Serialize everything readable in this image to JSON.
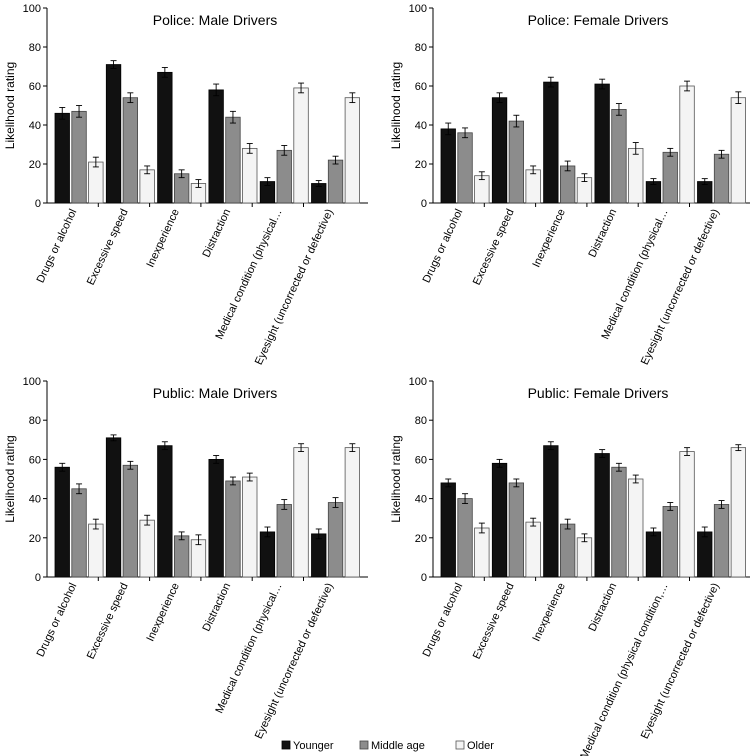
{
  "series_styles": [
    {
      "key": "younger",
      "fill": "#111111",
      "stroke": "#000000"
    },
    {
      "key": "middle",
      "fill": "#8c8c8c",
      "stroke": "#444444"
    },
    {
      "key": "older",
      "fill": "#f4f4f4",
      "stroke": "#555555"
    }
  ],
  "legend": [
    {
      "label": "Younger"
    },
    {
      "label": "Middle age"
    },
    {
      "label": "Older"
    }
  ],
  "chart_data": [
    {
      "type": "bar",
      "title": "Police: Male Drivers",
      "ylabel": "Likelihood rating",
      "ylim": [
        0,
        100
      ],
      "yticks": [
        0,
        20,
        40,
        60,
        80,
        100
      ],
      "categories": [
        "Drugs or alcohol",
        "Excessive speed",
        "Inexperience",
        "Distraction",
        "Medical condition (physical…",
        "Eyesight (uncorrected or defective)"
      ],
      "series": [
        {
          "name": "Younger",
          "values": [
            46,
            71,
            67,
            58,
            11,
            10
          ],
          "errors": [
            3,
            2,
            2.5,
            3,
            2,
            1.5
          ]
        },
        {
          "name": "Middle age",
          "values": [
            47,
            54,
            15,
            44,
            27,
            22
          ],
          "errors": [
            3,
            2.5,
            2,
            3,
            2.5,
            2
          ]
        },
        {
          "name": "Older",
          "values": [
            21,
            17,
            10,
            28,
            59,
            54
          ],
          "errors": [
            2.5,
            2,
            2,
            2.5,
            2.5,
            2.5
          ]
        }
      ]
    },
    {
      "type": "bar",
      "title": "Police: Female Drivers",
      "ylabel": "Likelihood rating",
      "ylim": [
        0,
        100
      ],
      "yticks": [
        0,
        20,
        40,
        60,
        80,
        100
      ],
      "categories": [
        "Drugs or alcohol",
        "Excessive speed",
        "Inexperience",
        "Distraction",
        "Medical condition (physical…",
        "Eyesight (uncorrected or defective)"
      ],
      "series": [
        {
          "name": "Younger",
          "values": [
            38,
            54,
            62,
            61,
            11,
            11
          ],
          "errors": [
            3,
            2.5,
            2.5,
            2.5,
            1.5,
            1.5
          ]
        },
        {
          "name": "Middle age",
          "values": [
            36,
            42,
            19,
            48,
            26,
            25
          ],
          "errors": [
            2.5,
            3,
            2.5,
            3,
            2,
            2
          ]
        },
        {
          "name": "Older",
          "values": [
            14,
            17,
            13,
            28,
            60,
            54
          ],
          "errors": [
            2,
            2,
            2,
            3,
            2.5,
            3
          ]
        }
      ]
    },
    {
      "type": "bar",
      "title": "Public: Male Drivers",
      "ylabel": "Likelihood rating",
      "ylim": [
        0,
        100
      ],
      "yticks": [
        0,
        20,
        40,
        60,
        80,
        100
      ],
      "categories": [
        "Drugs or alcohol",
        "Excessive speed",
        "Inexperience",
        "Distraction",
        "Medical condition (physical…",
        "Eyesight (uncorrected or defective)"
      ],
      "series": [
        {
          "name": "Younger",
          "values": [
            56,
            71,
            67,
            60,
            23,
            22
          ],
          "errors": [
            2,
            1.5,
            2,
            2,
            2.5,
            2.5
          ]
        },
        {
          "name": "Middle age",
          "values": [
            45,
            57,
            21,
            49,
            37,
            38
          ],
          "errors": [
            2.5,
            2,
            2,
            2,
            2.5,
            2.5
          ]
        },
        {
          "name": "Older",
          "values": [
            27,
            29,
            19,
            51,
            66,
            66
          ],
          "errors": [
            2.5,
            2.5,
            2.5,
            2,
            2,
            2
          ]
        }
      ]
    },
    {
      "type": "bar",
      "title": "Public: Female Drivers",
      "ylabel": "Likelihood rating",
      "ylim": [
        0,
        100
      ],
      "yticks": [
        0,
        20,
        40,
        60,
        80,
        100
      ],
      "categories": [
        "Drugs or alcohol",
        "Excessive speed",
        "Inexperience",
        "Distraction",
        "Medical condition (physical condition,…",
        "Eyesight (uncorrected or defective)"
      ],
      "series": [
        {
          "name": "Younger",
          "values": [
            48,
            58,
            67,
            63,
            23,
            23
          ],
          "errors": [
            2,
            2,
            2,
            2,
            2,
            2.5
          ]
        },
        {
          "name": "Middle age",
          "values": [
            40,
            48,
            27,
            56,
            36,
            37
          ],
          "errors": [
            2.5,
            2,
            2.5,
            2,
            2,
            2
          ]
        },
        {
          "name": "Older",
          "values": [
            25,
            28,
            20,
            50,
            64,
            66
          ],
          "errors": [
            2.5,
            2,
            2,
            2,
            2,
            1.5
          ]
        }
      ]
    }
  ]
}
